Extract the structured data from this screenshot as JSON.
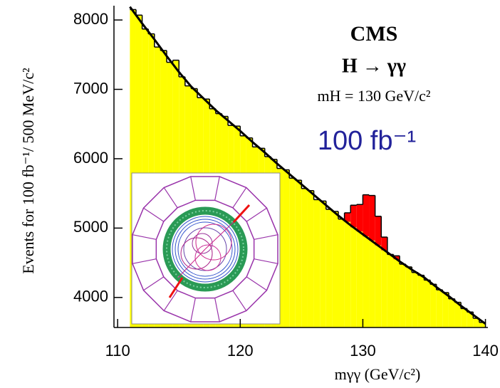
{
  "chart_data": {
    "type": "histogram",
    "xlabel": "mγγ (GeV/c²)",
    "ylabel": "Events for 100 fb⁻¹/ 500 MeV/c²",
    "annotations": [
      "CMS",
      "H → γγ",
      "mH = 130 GeV/c²",
      "100 fb⁻¹"
    ],
    "bins": [
      111,
      111.5,
      112,
      112.5,
      113,
      113.5,
      114,
      114.5,
      115,
      115.5,
      116,
      116.5,
      117,
      117.5,
      118,
      118.5,
      119,
      119.5,
      120,
      120.5,
      121,
      121.5,
      122,
      122.5,
      123,
      123.5,
      124,
      124.5,
      125,
      125.5,
      126,
      126.5,
      127,
      127.5,
      128,
      128.5,
      129,
      129.5,
      130,
      130.5,
      131,
      131.5,
      132,
      132.5,
      133,
      133.5,
      134,
      134.5,
      135,
      135.5,
      136,
      136.5,
      137,
      137.5,
      138,
      138.5,
      139,
      139.5,
      140
    ],
    "series": [
      {
        "color": "#ffff00",
        "values": [
          8150,
          8070,
          7870,
          7800,
          7610,
          7560,
          7390,
          7420,
          7180,
          7050,
          7010,
          6880,
          6860,
          6720,
          6650,
          6610,
          6480,
          6470,
          6330,
          6300,
          6170,
          6150,
          6030,
          5990,
          5860,
          5840,
          5720,
          5690,
          5570,
          5540,
          5410,
          5390,
          5270,
          5240,
          5130,
          5090,
          5010,
          4950,
          4880,
          4820,
          4750,
          4680,
          4620,
          4550,
          4480,
          4440,
          4360,
          4320,
          4250,
          4190,
          4110,
          4070,
          3980,
          3930,
          3840,
          3790,
          3700,
          3640
        ]
      },
      {
        "color": "#ff0000",
        "values": [
          0,
          0,
          0,
          0,
          0,
          0,
          0,
          0,
          0,
          0,
          0,
          0,
          0,
          0,
          0,
          0,
          0,
          0,
          0,
          0,
          0,
          0,
          0,
          0,
          0,
          0,
          0,
          0,
          0,
          0,
          0,
          0,
          0,
          0,
          0,
          130,
          320,
          390,
          600,
          650,
          420,
          190,
          0,
          50,
          0,
          0,
          0,
          0,
          0,
          0,
          0,
          0,
          0,
          0,
          0,
          0,
          0,
          0
        ]
      }
    ],
    "fit": {
      "color": "#000000",
      "x": [
        111,
        112,
        113,
        114,
        115,
        116,
        117,
        118,
        119,
        120,
        121,
        122,
        123,
        124,
        125,
        126,
        127,
        128,
        129,
        130,
        131,
        132,
        133,
        134,
        135,
        136,
        137,
        138,
        139,
        140
      ],
      "y": [
        8190,
        7950,
        7720,
        7480,
        7250,
        7040,
        6870,
        6700,
        6550,
        6400,
        6240,
        6090,
        5930,
        5780,
        5630,
        5480,
        5330,
        5180,
        5040,
        4910,
        4780,
        4650,
        4520,
        4400,
        4290,
        4150,
        4020,
        3880,
        3750,
        3620
      ]
    },
    "xlim": [
      109.7,
      140.2
    ],
    "xticks": [
      110,
      120,
      130,
      140
    ],
    "ylim": [
      3567,
      8206
    ],
    "yticks": [
      4000,
      5000,
      6000,
      7000,
      8000
    ]
  }
}
